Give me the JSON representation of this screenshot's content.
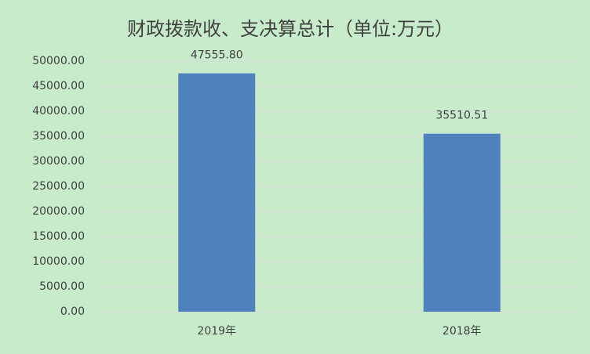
{
  "chart_data": {
    "type": "bar",
    "title": "财政拨款收、支决算总计（单位:万元）",
    "categories": [
      "2019年",
      "2018年"
    ],
    "values": [
      47555.8,
      35510.51
    ],
    "value_labels": [
      "47555.80",
      "35510.51"
    ],
    "color": "#4f81bd",
    "ylim": [
      0,
      50000
    ],
    "yticks": [
      {
        "value": 0,
        "label": "0.00"
      },
      {
        "value": 5000,
        "label": "5000.00"
      },
      {
        "value": 10000,
        "label": "10000.00"
      },
      {
        "value": 15000,
        "label": "15000.00"
      },
      {
        "value": 20000,
        "label": "20000.00"
      },
      {
        "value": 25000,
        "label": "25000.00"
      },
      {
        "value": 30000,
        "label": "30000.00"
      },
      {
        "value": 35000,
        "label": "35000.00"
      },
      {
        "value": 40000,
        "label": "40000.00"
      },
      {
        "value": 45000,
        "label": "45000.00"
      },
      {
        "value": 50000,
        "label": "50000.00"
      }
    ],
    "grid": true
  }
}
